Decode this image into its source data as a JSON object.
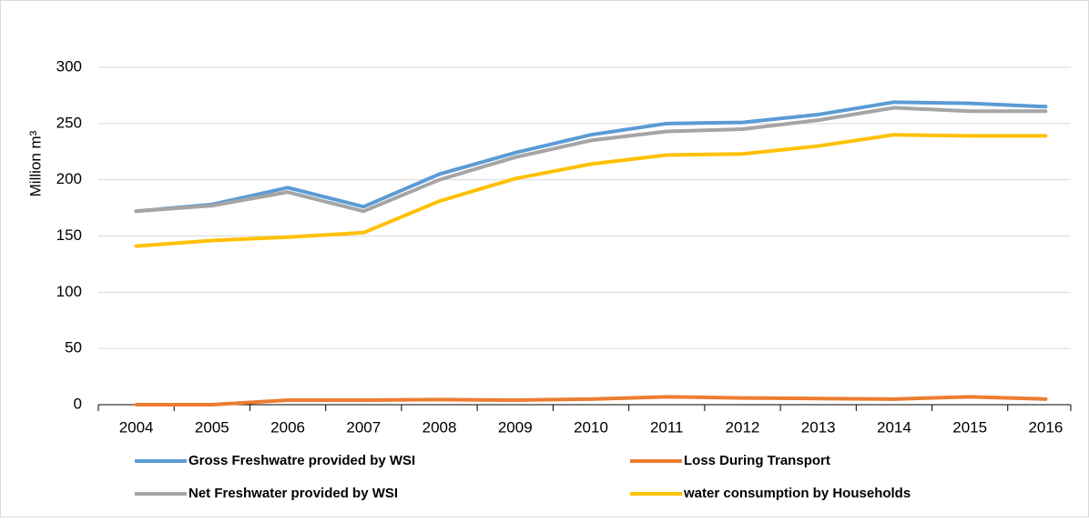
{
  "chart_data": {
    "type": "line",
    "y_label": "Million m³",
    "categories": [
      "2004",
      "2005",
      "2006",
      "2007",
      "2008",
      "2009",
      "2010",
      "2011",
      "2012",
      "2013",
      "2014",
      "2015",
      "2016"
    ],
    "series": [
      {
        "name": "Gross Freshwatre provided by WSI",
        "color": "#5b9bd5",
        "values": [
          172,
          178,
          193,
          176,
          205,
          224,
          240,
          250,
          251,
          258,
          269,
          268,
          265
        ]
      },
      {
        "name": "Loss During Transport",
        "color": "#ed7d31",
        "values": [
          0,
          0,
          4,
          4,
          4.5,
          4,
          5,
          7,
          6,
          5.5,
          5,
          7,
          5
        ]
      },
      {
        "name": "Net Freshwater provided by WSI",
        "color": "#a5a5a5",
        "values": [
          172,
          177,
          189,
          172,
          200,
          220,
          235,
          243,
          245,
          253,
          264,
          261,
          261
        ]
      },
      {
        "name": "water consumption by Households",
        "color": "#ffc000",
        "values": [
          141,
          146,
          149,
          153,
          181,
          201,
          214,
          222,
          223,
          230,
          240,
          239,
          239
        ]
      }
    ],
    "ylim": [
      0,
      300
    ],
    "yticks": [
      0,
      50,
      100,
      150,
      200,
      250,
      300
    ],
    "grid": true,
    "legend": "bottom"
  }
}
